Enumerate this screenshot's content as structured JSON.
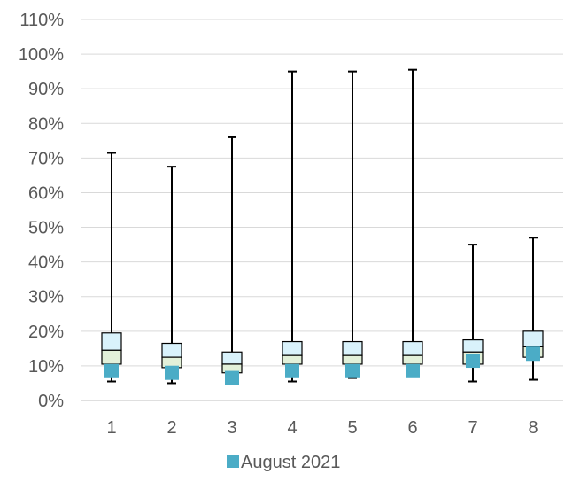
{
  "chart_data": {
    "type": "box",
    "categories": [
      "1",
      "2",
      "3",
      "4",
      "5",
      "6",
      "7",
      "8"
    ],
    "y_ticks": [
      "0%",
      "10%",
      "20%",
      "30%",
      "40%",
      "50%",
      "60%",
      "70%",
      "80%",
      "90%",
      "100%",
      "110%"
    ],
    "ylim": [
      0,
      110
    ],
    "grid": true,
    "legend_position": "bottom",
    "boxes": [
      {
        "min": 5.5,
        "q1": 10.5,
        "median": 14.5,
        "q3": 19.5,
        "max": 71.5
      },
      {
        "min": 5,
        "q1": 9.5,
        "median": 12.5,
        "q3": 16.5,
        "max": 67.5
      },
      {
        "min": 6,
        "q1": 8,
        "median": 10.5,
        "q3": 14,
        "max": 76
      },
      {
        "min": 5.5,
        "q1": 10.5,
        "median": 13,
        "q3": 17,
        "max": 95
      },
      {
        "min": 6.5,
        "q1": 10.5,
        "median": 13,
        "q3": 17,
        "max": 95
      },
      {
        "min": 7,
        "q1": 10.5,
        "median": 13,
        "q3": 17,
        "max": 95.5
      },
      {
        "min": 5.5,
        "q1": 10.5,
        "median": 14,
        "q3": 17.5,
        "max": 45
      },
      {
        "min": 6,
        "q1": 12.5,
        "median": 15.5,
        "q3": 20,
        "max": 47
      }
    ],
    "series": [
      {
        "name": "August 2021",
        "values": [
          8.5,
          8,
          6.5,
          8.5,
          8.5,
          8.5,
          11.5,
          13.5
        ],
        "color": "#4bacc6"
      }
    ],
    "colors": {
      "lower_box": "#e2f0d9",
      "upper_box": "#d9f2fb",
      "box_stroke": "#000000",
      "whisker": "#000000",
      "grid": "#d9d9d9",
      "axis": "#bfbfbf",
      "marker": "#4bacc6"
    }
  }
}
